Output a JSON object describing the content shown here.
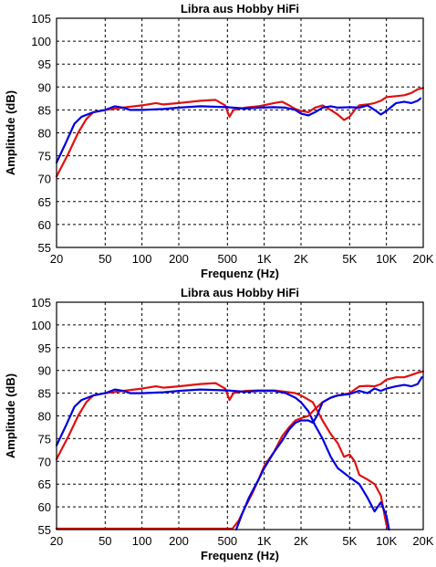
{
  "chart_data": [
    {
      "type": "line",
      "title": "Libra aus Hobby HiFi",
      "xlabel": "Frequenz (Hz)",
      "ylabel": "Amplitude (dB)",
      "x_scale": "log",
      "xlim": [
        20,
        20000
      ],
      "ylim": [
        55,
        105
      ],
      "grid": true,
      "xticks": [
        20,
        50,
        100,
        200,
        500,
        1000,
        2000,
        5000,
        10000,
        20000
      ],
      "xtick_labels": [
        "20",
        "50",
        "100",
        "200",
        "500",
        "1K",
        "2K",
        "5K",
        "10K",
        "20K"
      ],
      "yticks": [
        55,
        60,
        65,
        70,
        75,
        80,
        85,
        90,
        95,
        100,
        105
      ],
      "ytick_labels": [
        "55",
        "60",
        "65",
        "70",
        "75",
        "80",
        "85",
        "90",
        "95",
        "100",
        "105"
      ],
      "series": [
        {
          "color": "#e01010",
          "points": [
            [
              20,
              70.5
            ],
            [
              25,
              75.5
            ],
            [
              30,
              80
            ],
            [
              35,
              83
            ],
            [
              40,
              84.5
            ],
            [
              50,
              85
            ],
            [
              70,
              85.5
            ],
            [
              100,
              86
            ],
            [
              130,
              86.5
            ],
            [
              150,
              86.2
            ],
            [
              200,
              86.5
            ],
            [
              300,
              87
            ],
            [
              400,
              87.2
            ],
            [
              480,
              86
            ],
            [
              520,
              83.5
            ],
            [
              560,
              85
            ],
            [
              700,
              85.5
            ],
            [
              900,
              85.8
            ],
            [
              1200,
              86.5
            ],
            [
              1400,
              86.8
            ],
            [
              1600,
              86
            ],
            [
              1800,
              85.2
            ],
            [
              2000,
              84.8
            ],
            [
              2300,
              84.5
            ],
            [
              2600,
              85.5
            ],
            [
              3000,
              86
            ],
            [
              3500,
              85
            ],
            [
              4000,
              84
            ],
            [
              4500,
              82.8
            ],
            [
              5000,
              83.5
            ],
            [
              5500,
              85
            ],
            [
              6000,
              86
            ],
            [
              7000,
              86.2
            ],
            [
              8000,
              86.5
            ],
            [
              9000,
              87
            ],
            [
              10000,
              87.8
            ],
            [
              12000,
              88
            ],
            [
              14000,
              88.2
            ],
            [
              16000,
              88.7
            ],
            [
              18000,
              89.5
            ],
            [
              20000,
              89.8
            ]
          ]
        },
        {
          "color": "#0000e0",
          "points": [
            [
              20,
              73.5
            ],
            [
              24,
              78
            ],
            [
              28,
              82
            ],
            [
              32,
              83.5
            ],
            [
              40,
              84.5
            ],
            [
              50,
              85
            ],
            [
              60,
              85.8
            ],
            [
              70,
              85.5
            ],
            [
              80,
              85
            ],
            [
              100,
              85
            ],
            [
              150,
              85.2
            ],
            [
              200,
              85.5
            ],
            [
              300,
              85.8
            ],
            [
              500,
              85.6
            ],
            [
              700,
              85.3
            ],
            [
              900,
              85.5
            ],
            [
              1200,
              85.6
            ],
            [
              1500,
              85.5
            ],
            [
              1800,
              85
            ],
            [
              2000,
              84.2
            ],
            [
              2300,
              83.8
            ],
            [
              2600,
              84.5
            ],
            [
              3000,
              85.5
            ],
            [
              3500,
              85.8
            ],
            [
              4000,
              85.5
            ],
            [
              5000,
              85.6
            ],
            [
              6000,
              85.5
            ],
            [
              7000,
              86
            ],
            [
              8000,
              85
            ],
            [
              9000,
              84
            ],
            [
              10000,
              84.8
            ],
            [
              12000,
              86.5
            ],
            [
              14000,
              86.8
            ],
            [
              16000,
              86.5
            ],
            [
              18000,
              87
            ],
            [
              19000,
              87.5
            ]
          ]
        }
      ]
    },
    {
      "type": "line",
      "title": "Libra aus Hobby HiFi",
      "xlabel": "Frequenz (Hz)",
      "ylabel": "Amplitude (dB)",
      "x_scale": "log",
      "xlim": [
        20,
        20000
      ],
      "ylim": [
        55,
        105
      ],
      "grid": true,
      "xticks": [
        20,
        50,
        100,
        200,
        500,
        1000,
        2000,
        5000,
        10000,
        20000
      ],
      "xtick_labels": [
        "20",
        "50",
        "100",
        "200",
        "500",
        "1K",
        "2K",
        "5K",
        "10K",
        "20K"
      ],
      "yticks": [
        55,
        60,
        65,
        70,
        75,
        80,
        85,
        90,
        95,
        100,
        105
      ],
      "ytick_labels": [
        "55",
        "60",
        "65",
        "70",
        "75",
        "80",
        "85",
        "90",
        "95",
        "100",
        "105"
      ],
      "series": [
        {
          "color": "#e01010",
          "points": [
            [
              20,
              70.5
            ],
            [
              25,
              75.5
            ],
            [
              30,
              80
            ],
            [
              35,
              83
            ],
            [
              40,
              84.5
            ],
            [
              50,
              85
            ],
            [
              70,
              85.5
            ],
            [
              100,
              86
            ],
            [
              130,
              86.5
            ],
            [
              150,
              86.2
            ],
            [
              200,
              86.5
            ],
            [
              300,
              87
            ],
            [
              400,
              87.2
            ],
            [
              480,
              86
            ],
            [
              520,
              83.5
            ],
            [
              560,
              85
            ],
            [
              700,
              85.5
            ],
            [
              900,
              85.6
            ],
            [
              1200,
              85.6
            ],
            [
              1500,
              85.3
            ],
            [
              1800,
              85
            ],
            [
              2000,
              84.5
            ],
            [
              2500,
              83
            ],
            [
              3000,
              79
            ],
            [
              3500,
              76
            ],
            [
              4000,
              74
            ],
            [
              4500,
              71
            ],
            [
              5000,
              71.5
            ],
            [
              5500,
              70
            ],
            [
              6000,
              67
            ],
            [
              7000,
              66
            ],
            [
              8000,
              65
            ],
            [
              9000,
              62.5
            ],
            [
              10000,
              56
            ],
            [
              10500,
              55
            ]
          ]
        },
        {
          "color": "#0000e0",
          "points": [
            [
              20,
              73.5
            ],
            [
              24,
              78
            ],
            [
              28,
              82
            ],
            [
              32,
              83.5
            ],
            [
              40,
              84.5
            ],
            [
              50,
              85
            ],
            [
              60,
              85.8
            ],
            [
              70,
              85.5
            ],
            [
              80,
              85
            ],
            [
              100,
              85
            ],
            [
              150,
              85.2
            ],
            [
              200,
              85.5
            ],
            [
              300,
              85.8
            ],
            [
              500,
              85.6
            ],
            [
              700,
              85.3
            ],
            [
              900,
              85.5
            ],
            [
              1200,
              85.5
            ],
            [
              1500,
              85
            ],
            [
              1800,
              84
            ],
            [
              2000,
              83
            ],
            [
              2300,
              81
            ],
            [
              2600,
              78
            ],
            [
              3000,
              75
            ],
            [
              3500,
              71
            ],
            [
              4000,
              68.5
            ],
            [
              5000,
              66.5
            ],
            [
              6000,
              65
            ],
            [
              7000,
              62
            ],
            [
              8000,
              59
            ],
            [
              9000,
              61
            ],
            [
              10000,
              58
            ],
            [
              10500,
              55
            ]
          ]
        },
        {
          "color": "#e01010",
          "points": [
            [
              20,
              55.2
            ],
            [
              100,
              55.2
            ],
            [
              300,
              55.2
            ],
            [
              550,
              55.2
            ],
            [
              620,
              57
            ],
            [
              700,
              60
            ],
            [
              800,
              63
            ],
            [
              900,
              66
            ],
            [
              1000,
              69
            ],
            [
              1200,
              72
            ],
            [
              1400,
              75.5
            ],
            [
              1600,
              77.5
            ],
            [
              1800,
              79
            ],
            [
              2000,
              79.5
            ],
            [
              2300,
              80
            ],
            [
              2600,
              81.5
            ],
            [
              3000,
              83
            ],
            [
              3500,
              84
            ],
            [
              4000,
              84.5
            ],
            [
              5000,
              85
            ],
            [
              6000,
              86.5
            ],
            [
              7000,
              86.6
            ],
            [
              8000,
              86.5
            ],
            [
              9000,
              87
            ],
            [
              10000,
              88
            ],
            [
              12000,
              88.5
            ],
            [
              14000,
              88.5
            ],
            [
              16000,
              89
            ],
            [
              18000,
              89.5
            ],
            [
              20000,
              89.8
            ]
          ]
        },
        {
          "color": "#0000e0",
          "points": [
            [
              590,
              55
            ],
            [
              650,
              58
            ],
            [
              750,
              62
            ],
            [
              900,
              66
            ],
            [
              1000,
              68.5
            ],
            [
              1200,
              72
            ],
            [
              1400,
              74.5
            ],
            [
              1600,
              77
            ],
            [
              1800,
              78.5
            ],
            [
              2000,
              79
            ],
            [
              2300,
              79
            ],
            [
              2500,
              78.5
            ],
            [
              2700,
              80
            ],
            [
              3000,
              83
            ],
            [
              3500,
              84
            ],
            [
              4000,
              84.5
            ],
            [
              5000,
              84.8
            ],
            [
              6000,
              85.5
            ],
            [
              7000,
              85
            ],
            [
              8000,
              86
            ],
            [
              9000,
              85.5
            ],
            [
              10000,
              86
            ],
            [
              12000,
              86.5
            ],
            [
              14000,
              86.8
            ],
            [
              16000,
              86.5
            ],
            [
              18000,
              87
            ],
            [
              19500,
              88.5
            ]
          ]
        }
      ]
    }
  ]
}
